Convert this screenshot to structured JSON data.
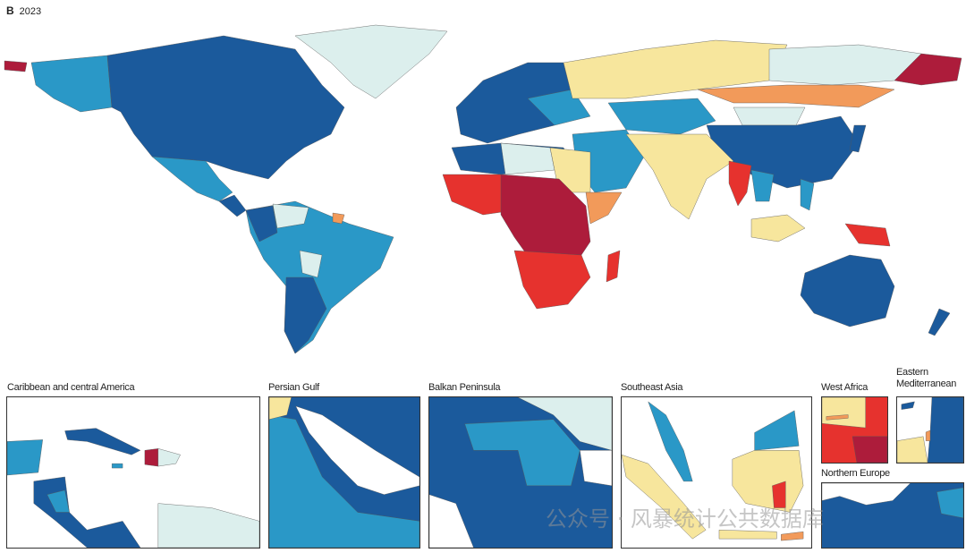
{
  "figure": {
    "panel": "B",
    "year": "2023"
  },
  "palette": {
    "darkblue": "#1b5a9c",
    "blue": "#2a98c7",
    "pale": "#dcefed",
    "yellow": "#f7e69d",
    "orange": "#f29a5a",
    "red": "#e6322e",
    "darkred": "#ad1c3b",
    "black": "#111111"
  },
  "insets": [
    {
      "label": "Caribbean and central America"
    },
    {
      "label": "Persian Gulf"
    },
    {
      "label": "Balkan Peninsula"
    },
    {
      "label": "Southeast Asia"
    },
    {
      "label": "West Africa"
    },
    {
      "label": "Eastern Mediterranean"
    },
    {
      "label": "Northern Europe"
    }
  ],
  "watermark": "公众号 · 风暴统计公共数据库"
}
